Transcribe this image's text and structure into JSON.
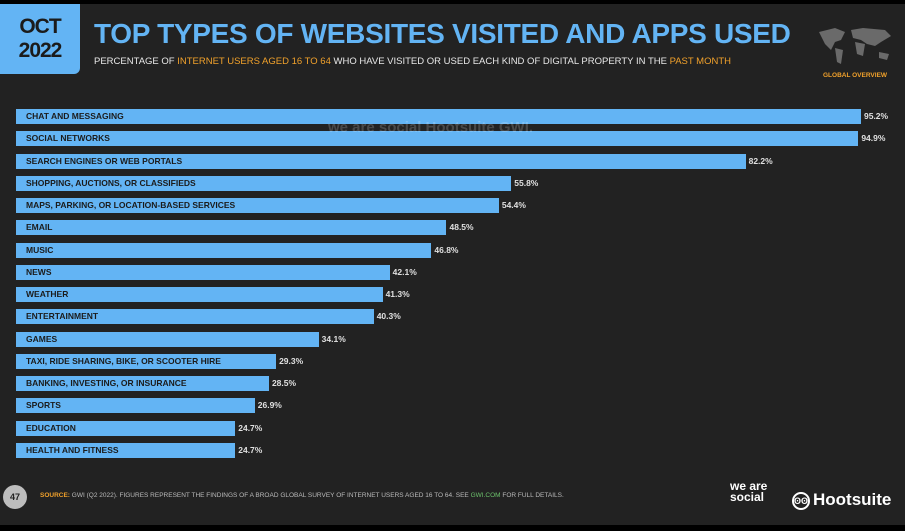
{
  "header": {
    "date_month": "OCT",
    "date_year": "2022",
    "title": "TOP TYPES OF WEBSITES VISITED AND APPS USED",
    "subtitle_parts": [
      "PERCENTAGE OF ",
      "INTERNET USERS AGED 16 TO 64",
      " WHO HAVE VISITED OR USED EACH KIND OF DIGITAL PROPERTY IN THE ",
      "PAST MONTH"
    ],
    "region": "GLOBAL OVERVIEW"
  },
  "watermark": "we are social   Hootsuite   GWI.",
  "footer": {
    "page": "47",
    "source_label": "SOURCE:",
    "source_text": " GWI (Q2 2022). FIGURES REPRESENT THE FINDINGS OF A BROAD GLOBAL SURVEY OF INTERNET USERS AGED 16 TO 64. SEE ",
    "source_link": "GWI.COM",
    "source_end": " FOR FULL DETAILS.",
    "logo1": "we are social",
    "logo2": "Hootsuite"
  },
  "colors": {
    "bar": "#63b4f4",
    "accent": "#f1a12b",
    "background": "#222222"
  },
  "chart_data": {
    "type": "bar",
    "orientation": "horizontal",
    "categories": [
      "CHAT AND MESSAGING",
      "SOCIAL NETWORKS",
      "SEARCH ENGINES OR WEB PORTALS",
      "SHOPPING, AUCTIONS, OR CLASSIFIEDS",
      "MAPS, PARKING, OR LOCATION-BASED SERVICES",
      "EMAIL",
      "MUSIC",
      "NEWS",
      "WEATHER",
      "ENTERTAINMENT",
      "GAMES",
      "TAXI, RIDE SHARING, BIKE, OR SCOOTER HIRE",
      "BANKING, INVESTING, OR INSURANCE",
      "SPORTS",
      "EDUCATION",
      "HEALTH AND FITNESS"
    ],
    "values": [
      95.2,
      94.9,
      82.2,
      55.8,
      54.4,
      48.5,
      46.8,
      42.1,
      41.3,
      40.3,
      34.1,
      29.3,
      28.5,
      26.9,
      24.7,
      24.7
    ],
    "value_labels": [
      "95.2%",
      "94.9%",
      "82.2%",
      "55.8%",
      "54.4%",
      "48.5%",
      "46.8%",
      "42.1%",
      "41.3%",
      "40.3%",
      "34.1%",
      "29.3%",
      "28.5%",
      "26.9%",
      "24.7%",
      "24.7%"
    ],
    "xlim": [
      0,
      100
    ],
    "unit": "%"
  }
}
